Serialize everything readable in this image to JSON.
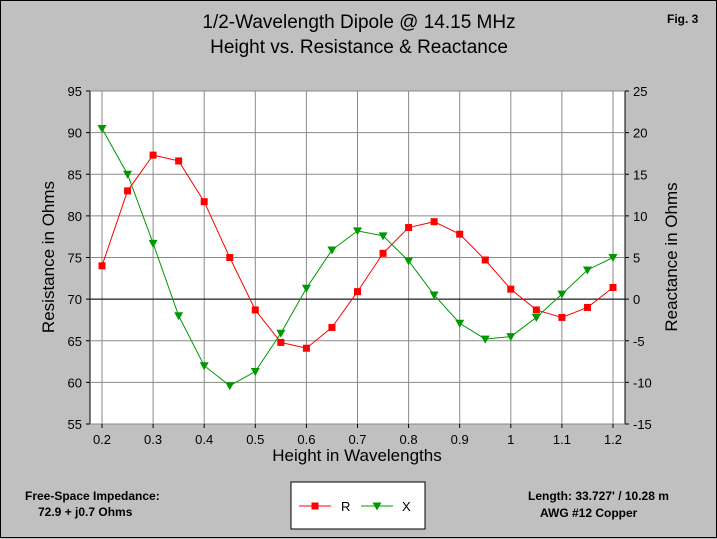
{
  "chart_data": {
    "type": "line",
    "title": "1/2-Wavelength Dipole @ 14.15 MHz",
    "subtitle": "Height vs. Resistance & Reactance",
    "fig_label": "Fig. 3",
    "xlabel": "Height in Wavelengths",
    "ylabel": "Resistance in Ohms",
    "y2label": "Reactance in Ohms",
    "xlim": [
      0.2,
      1.2
    ],
    "ylim": [
      55,
      95
    ],
    "y2lim": [
      -15,
      25
    ],
    "x_ticks": [
      "0.2",
      "0.3",
      "0.4",
      "0.5",
      "0.6",
      "0.7",
      "0.8",
      "0.9",
      "1",
      "1.1",
      "1.2"
    ],
    "y_ticks": [
      "55",
      "60",
      "65",
      "70",
      "75",
      "80",
      "85",
      "90",
      "95"
    ],
    "y2_ticks": [
      "-15",
      "-10",
      "-5",
      "0",
      "5",
      "10",
      "15",
      "20",
      "25"
    ],
    "x": [
      0.2,
      0.25,
      0.3,
      0.35,
      0.4,
      0.45,
      0.5,
      0.55,
      0.6,
      0.65,
      0.7,
      0.75,
      0.8,
      0.85,
      0.9,
      0.95,
      1.0,
      1.05,
      1.1,
      1.15,
      1.2
    ],
    "series": [
      {
        "name": "R",
        "axis": "left",
        "color": "#ff0000",
        "marker": "square",
        "values": [
          74.0,
          83.0,
          87.3,
          86.6,
          81.7,
          75.0,
          68.7,
          64.8,
          64.1,
          66.6,
          70.9,
          75.5,
          78.6,
          79.3,
          77.8,
          74.7,
          71.2,
          68.7,
          67.8,
          69.0,
          71.4
        ]
      },
      {
        "name": "X",
        "axis": "right",
        "color": "#009900",
        "marker": "triangle-down",
        "values": [
          20.5,
          15.0,
          6.7,
          -2.0,
          -8.0,
          -10.4,
          -8.7,
          -4.1,
          1.3,
          5.9,
          8.2,
          7.6,
          4.6,
          0.5,
          -2.9,
          -4.8,
          -4.5,
          -2.2,
          0.6,
          3.5,
          5.0
        ]
      }
    ]
  },
  "notes": {
    "impedance_title": "Free-Space Impedance:",
    "impedance_value": "72.9 + j0.7 Ohms",
    "length": "Length:  33.727' / 10.28 m",
    "wire": "AWG #12 Copper"
  }
}
